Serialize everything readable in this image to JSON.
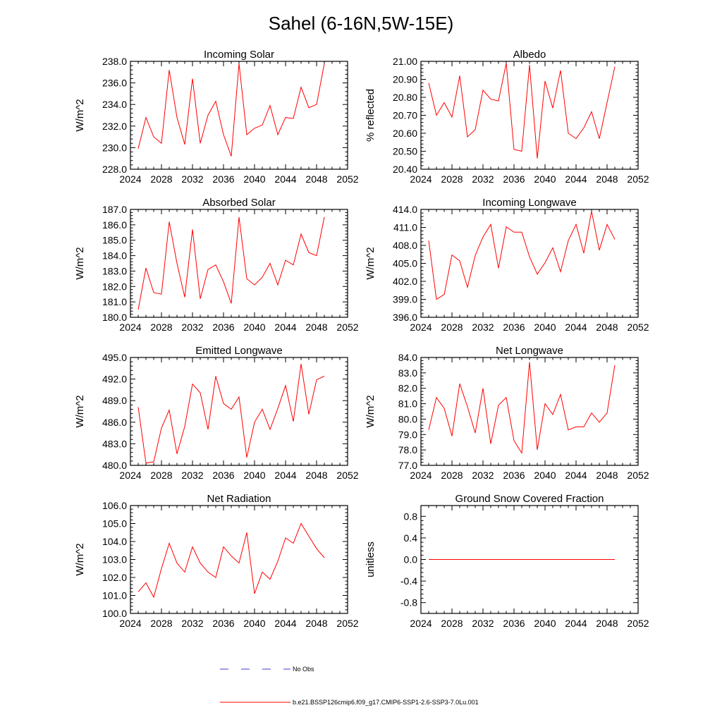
{
  "figure": {
    "title": "Sahel (6-16N,5W-15E)",
    "legend": [
      {
        "label": "No Obs",
        "color": "#3b3bd6",
        "style": "dashed"
      },
      {
        "label": "b.e21.BSSP126cmip6.f09_g17.CMIP6-SSP1-2.6-SSP3-7.0Lu.001",
        "color": "#ff0000",
        "style": "solid"
      }
    ]
  },
  "chart_data": [
    {
      "type": "line",
      "title": "Incoming Solar",
      "xlabel": "",
      "ylabel": "W/m^2",
      "xlim": [
        2024,
        2052
      ],
      "ylim": [
        228,
        238
      ],
      "xticks": [
        2024,
        2028,
        2032,
        2036,
        2040,
        2044,
        2048,
        2052
      ],
      "yticks": [
        228,
        230,
        232,
        234,
        236,
        238
      ],
      "ydecimals": 1,
      "color": "#ff0000",
      "x": [
        2025,
        2026,
        2027,
        2028,
        2029,
        2030,
        2031,
        2032,
        2033,
        2034,
        2035,
        2036,
        2037,
        2038,
        2039,
        2040,
        2041,
        2042,
        2043,
        2044,
        2045,
        2046,
        2047,
        2048,
        2049
      ],
      "y": [
        229.9,
        232.8,
        231.0,
        230.4,
        237.2,
        232.8,
        230.3,
        236.4,
        230.4,
        233.0,
        234.3,
        231.2,
        229.2,
        237.8,
        231.2,
        231.8,
        232.1,
        233.9,
        231.2,
        232.8,
        232.7,
        235.6,
        233.7,
        234.0,
        237.8
      ]
    },
    {
      "type": "line",
      "title": "Albedo",
      "xlabel": "",
      "ylabel": "% reflected",
      "xlim": [
        2024,
        2052
      ],
      "ylim": [
        20.4,
        21.0
      ],
      "xticks": [
        2024,
        2028,
        2032,
        2036,
        2040,
        2044,
        2048,
        2052
      ],
      "yticks": [
        20.4,
        20.5,
        20.6,
        20.7,
        20.8,
        20.9,
        21.0
      ],
      "ydecimals": 2,
      "color": "#ff0000",
      "x": [
        2025,
        2026,
        2027,
        2028,
        2029,
        2030,
        2031,
        2032,
        2033,
        2034,
        2035,
        2036,
        2037,
        2038,
        2039,
        2040,
        2041,
        2042,
        2043,
        2044,
        2045,
        2046,
        2047,
        2048,
        2049
      ],
      "y": [
        20.88,
        20.7,
        20.77,
        20.69,
        20.92,
        20.58,
        20.62,
        20.84,
        20.79,
        20.78,
        20.99,
        20.51,
        20.5,
        20.98,
        20.46,
        20.89,
        20.74,
        20.95,
        20.6,
        20.57,
        20.63,
        20.72,
        20.57,
        20.77,
        20.97
      ]
    },
    {
      "type": "line",
      "title": "Absorbed Solar",
      "xlabel": "",
      "ylabel": "W/m^2",
      "xlim": [
        2024,
        2052
      ],
      "ylim": [
        180,
        187
      ],
      "xticks": [
        2024,
        2028,
        2032,
        2036,
        2040,
        2044,
        2048,
        2052
      ],
      "yticks": [
        180,
        181,
        182,
        183,
        184,
        185,
        186,
        187
      ],
      "ydecimals": 1,
      "color": "#ff0000",
      "x": [
        2025,
        2026,
        2027,
        2028,
        2029,
        2030,
        2031,
        2032,
        2033,
        2034,
        2035,
        2036,
        2037,
        2038,
        2039,
        2040,
        2041,
        2042,
        2043,
        2044,
        2045,
        2046,
        2047,
        2048,
        2049
      ],
      "y": [
        180.5,
        183.2,
        181.6,
        181.5,
        186.2,
        183.5,
        181.3,
        185.7,
        181.2,
        183.1,
        183.4,
        182.3,
        180.9,
        186.5,
        182.5,
        182.1,
        182.6,
        183.5,
        182.1,
        183.7,
        183.4,
        185.4,
        184.2,
        184.0,
        186.5
      ]
    },
    {
      "type": "line",
      "title": "Incoming Longwave",
      "xlabel": "",
      "ylabel": "W/m^2",
      "xlim": [
        2024,
        2052
      ],
      "ylim": [
        396,
        414
      ],
      "xticks": [
        2024,
        2028,
        2032,
        2036,
        2040,
        2044,
        2048,
        2052
      ],
      "yticks": [
        396,
        399,
        402,
        405,
        408,
        411,
        414
      ],
      "ydecimals": 1,
      "color": "#ff0000",
      "x": [
        2025,
        2026,
        2027,
        2028,
        2029,
        2030,
        2031,
        2032,
        2033,
        2034,
        2035,
        2036,
        2037,
        2038,
        2039,
        2040,
        2041,
        2042,
        2043,
        2044,
        2045,
        2046,
        2047,
        2048,
        2049
      ],
      "y": [
        408.8,
        399.0,
        399.8,
        406.4,
        405.4,
        401.0,
        406.3,
        409.4,
        411.5,
        404.2,
        411.1,
        410.2,
        410.2,
        406.1,
        403.2,
        405.1,
        407.6,
        403.6,
        408.8,
        411.5,
        406.7,
        413.7,
        407.2,
        411.5,
        409.0
      ]
    },
    {
      "type": "line",
      "title": "Emitted Longwave",
      "xlabel": "",
      "ylabel": "W/m^2",
      "xlim": [
        2024,
        2052
      ],
      "ylim": [
        480,
        495
      ],
      "xticks": [
        2024,
        2028,
        2032,
        2036,
        2040,
        2044,
        2048,
        2052
      ],
      "yticks": [
        480,
        483,
        486,
        489,
        492,
        495
      ],
      "ydecimals": 1,
      "color": "#ff0000",
      "x": [
        2025,
        2026,
        2027,
        2028,
        2029,
        2030,
        2031,
        2032,
        2033,
        2034,
        2035,
        2036,
        2037,
        2038,
        2039,
        2040,
        2041,
        2042,
        2043,
        2044,
        2045,
        2046,
        2047,
        2048,
        2049
      ],
      "y": [
        488.1,
        480.3,
        480.5,
        485.2,
        487.7,
        481.6,
        485.4,
        491.3,
        490.1,
        485.0,
        492.4,
        488.6,
        487.8,
        489.5,
        481.1,
        486.0,
        487.8,
        485.0,
        487.9,
        491.1,
        486.1,
        494.1,
        487.1,
        491.9,
        492.4
      ]
    },
    {
      "type": "line",
      "title": "Net Longwave",
      "xlabel": "",
      "ylabel": "W/m^2",
      "xlim": [
        2024,
        2052
      ],
      "ylim": [
        77,
        84
      ],
      "xticks": [
        2024,
        2028,
        2032,
        2036,
        2040,
        2044,
        2048,
        2052
      ],
      "yticks": [
        77,
        78,
        79,
        80,
        81,
        82,
        83,
        84
      ],
      "ydecimals": 1,
      "color": "#ff0000",
      "x": [
        2025,
        2026,
        2027,
        2028,
        2029,
        2030,
        2031,
        2032,
        2033,
        2034,
        2035,
        2036,
        2037,
        2038,
        2039,
        2040,
        2041,
        2042,
        2043,
        2044,
        2045,
        2046,
        2047,
        2048,
        2049
      ],
      "y": [
        79.3,
        81.4,
        80.7,
        78.9,
        82.3,
        80.8,
        79.1,
        82.0,
        78.4,
        80.9,
        81.4,
        78.6,
        77.8,
        83.7,
        78.0,
        81.0,
        80.3,
        81.6,
        79.3,
        79.5,
        79.5,
        80.4,
        79.8,
        80.4,
        83.5
      ]
    },
    {
      "type": "line",
      "title": "Net Radiation",
      "xlabel": "",
      "ylabel": "W/m^2",
      "xlim": [
        2024,
        2052
      ],
      "ylim": [
        100,
        106
      ],
      "xticks": [
        2024,
        2028,
        2032,
        2036,
        2040,
        2044,
        2048,
        2052
      ],
      "yticks": [
        100,
        101,
        102,
        103,
        104,
        105,
        106
      ],
      "ydecimals": 1,
      "color": "#ff0000",
      "x": [
        2025,
        2026,
        2027,
        2028,
        2029,
        2030,
        2031,
        2032,
        2033,
        2034,
        2035,
        2036,
        2037,
        2038,
        2039,
        2040,
        2041,
        2042,
        2043,
        2044,
        2045,
        2046,
        2047,
        2048,
        2049
      ],
      "y": [
        101.2,
        101.7,
        100.9,
        102.5,
        103.9,
        102.8,
        102.3,
        103.7,
        102.8,
        102.3,
        102.0,
        103.7,
        103.2,
        102.8,
        104.5,
        101.1,
        102.3,
        101.9,
        102.9,
        104.2,
        103.9,
        105.0,
        104.3,
        103.6,
        103.1
      ]
    },
    {
      "type": "line",
      "title": "Ground Snow Covered Fraction",
      "xlabel": "",
      "ylabel": "unitless",
      "xlim": [
        2024,
        2052
      ],
      "ylim": [
        -1.0,
        1.0
      ],
      "xticks": [
        2024,
        2028,
        2032,
        2036,
        2040,
        2044,
        2048,
        2052
      ],
      "yticks": [
        -0.8,
        -0.4,
        0.0,
        0.4,
        0.8
      ],
      "ydecimals": 1,
      "color": "#ff0000",
      "x": [
        2025,
        2026,
        2027,
        2028,
        2029,
        2030,
        2031,
        2032,
        2033,
        2034,
        2035,
        2036,
        2037,
        2038,
        2039,
        2040,
        2041,
        2042,
        2043,
        2044,
        2045,
        2046,
        2047,
        2048,
        2049
      ],
      "y": [
        0,
        0,
        0,
        0,
        0,
        0,
        0,
        0,
        0,
        0,
        0,
        0,
        0,
        0,
        0,
        0,
        0,
        0,
        0,
        0,
        0,
        0,
        0,
        0,
        0
      ]
    }
  ]
}
